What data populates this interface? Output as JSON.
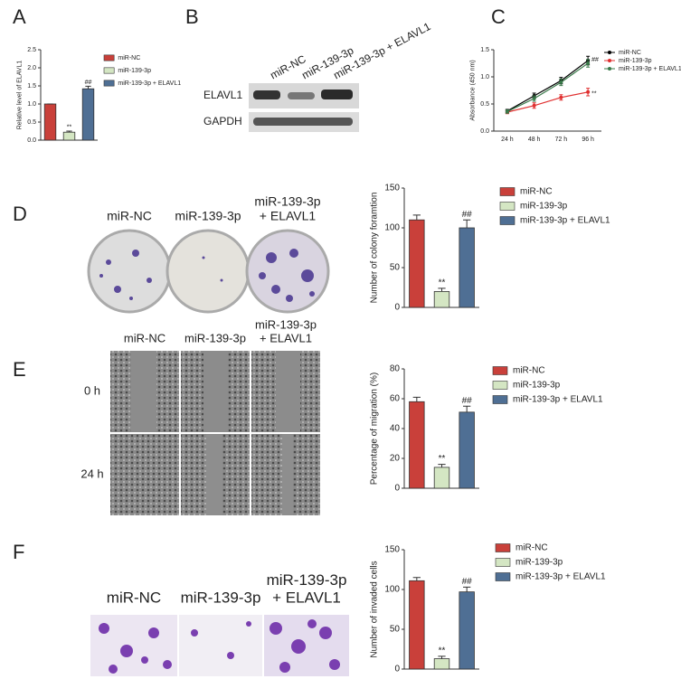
{
  "panels": [
    "A",
    "B",
    "C",
    "D",
    "E",
    "F"
  ],
  "blot": {
    "lanes": [
      "miR-NC",
      "miR-139-3p",
      "miR-139-3p + ELAVL1"
    ],
    "rows": [
      "ELAVL1",
      "GAPDH"
    ]
  },
  "colony": {
    "labels": [
      [
        "miR-NC"
      ],
      [
        "miR-139-3p"
      ],
      [
        "miR-139-3p",
        "+ ELAVL1"
      ]
    ]
  },
  "migration": {
    "labels": [
      [
        "miR-NC"
      ],
      [
        "miR-139-3p"
      ],
      [
        "miR-139-3p",
        "+ ELAVL1"
      ]
    ],
    "rows": [
      "0 h",
      "24 h"
    ]
  },
  "invasion": {
    "labels": [
      [
        "miR-NC"
      ],
      [
        "miR-139-3p"
      ],
      [
        "miR-139-3p",
        "+ ELAVL1"
      ]
    ]
  },
  "chart_data": [
    {
      "type": "bar",
      "ylabel": "Relative level of ELAVL1",
      "categories": [
        "miR-NC",
        "miR-139-3p",
        "miR-139-3p + ELAVL1"
      ],
      "colors": [
        "#c9403a",
        "#d4e6c3",
        "#4f6f94"
      ],
      "values": [
        1.0,
        0.22,
        1.42
      ],
      "errors": [
        0.0,
        0.03,
        0.07
      ],
      "annotations": [
        "**",
        "##"
      ],
      "ylim": [
        0,
        2.5
      ],
      "yticks": [
        {
          "value": 0,
          "label": "0.0"
        },
        {
          "value": 0.5,
          "label": "0.5"
        },
        {
          "value": 1,
          "label": "1.0"
        },
        {
          "value": 1.5,
          "label": "1.5"
        },
        {
          "value": 2,
          "label": "2.0"
        },
        {
          "value": 2.5,
          "label": "2.5"
        }
      ]
    },
    {
      "type": "line",
      "ylabel": "Absorbance (450 nm)",
      "categories": [
        "24 h",
        "48 h",
        "72 h",
        "96 h"
      ],
      "series": [
        {
          "name": "miR-NC",
          "color": "#000000",
          "values": [
            0.37,
            0.65,
            0.93,
            1.3
          ],
          "errors": [
            0.03,
            0.05,
            0.06,
            0.08
          ]
        },
        {
          "name": "miR-139-3p",
          "color": "#e03030",
          "values": [
            0.35,
            0.47,
            0.62,
            0.72
          ],
          "errors": [
            0.03,
            0.05,
            0.05,
            0.07
          ]
        },
        {
          "name": "miR-139-3p + ELAVL1",
          "color": "#3a7a4a",
          "values": [
            0.36,
            0.6,
            0.9,
            1.25
          ],
          "errors": [
            0.03,
            0.05,
            0.06,
            0.07
          ]
        }
      ],
      "annotations": [
        "**",
        "##"
      ],
      "ylim": [
        0,
        1.5
      ],
      "yticks": [
        {
          "value": 0,
          "label": "0.0"
        },
        {
          "value": 0.5,
          "label": "0.5"
        },
        {
          "value": 1,
          "label": "1.0"
        },
        {
          "value": 1.5,
          "label": "1.5"
        }
      ]
    },
    {
      "type": "bar",
      "ylabel": "Number of colony foramtion",
      "categories": [
        "miR-NC",
        "miR-139-3p",
        "miR-139-3p + ELAVL1"
      ],
      "colors": [
        "#c9403a",
        "#d4e6c3",
        "#4f6f94"
      ],
      "values": [
        110,
        20,
        100
      ],
      "errors": [
        6,
        4,
        10
      ],
      "annotations": [
        "**",
        "##"
      ],
      "ylim": [
        0,
        150
      ],
      "yticks": [
        0,
        50,
        100,
        150
      ]
    },
    {
      "type": "bar",
      "ylabel": "Percentage of migration (%)",
      "categories": [
        "miR-NC",
        "miR-139-3p",
        "miR-139-3p + ELAVL1"
      ],
      "colors": [
        "#c9403a",
        "#d4e6c3",
        "#4f6f94"
      ],
      "values": [
        58,
        14,
        51
      ],
      "errors": [
        3,
        2,
        4
      ],
      "annotations": [
        "**",
        "##"
      ],
      "ylim": [
        0,
        80
      ],
      "yticks": [
        0,
        20,
        40,
        60,
        80
      ]
    },
    {
      "type": "bar",
      "ylabel": "Number of invaded cells",
      "categories": [
        "miR-NC",
        "miR-139-3p",
        "miR-139-3p + ELAVL1"
      ],
      "colors": [
        "#c9403a",
        "#d4e6c3",
        "#4f6f94"
      ],
      "values": [
        111,
        13,
        97
      ],
      "errors": [
        4,
        3,
        6
      ],
      "annotations": [
        "**",
        "##"
      ],
      "ylim": [
        0,
        150
      ],
      "yticks": [
        0,
        50,
        100,
        150
      ]
    }
  ]
}
